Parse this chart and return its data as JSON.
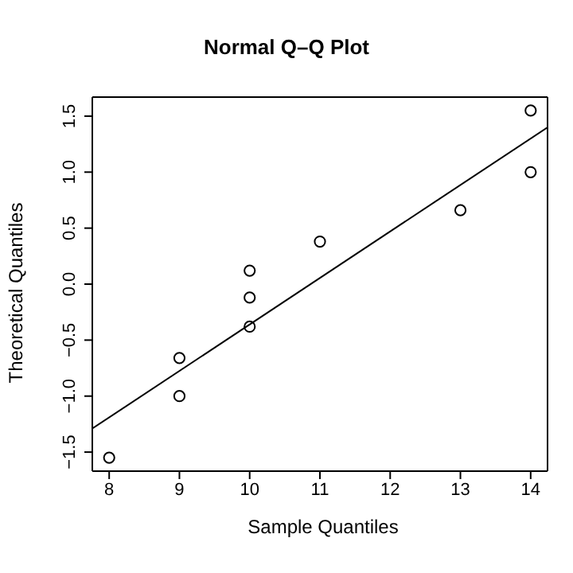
{
  "chart_data": {
    "type": "scatter",
    "title": "Normal Q–Q Plot",
    "xlabel": "Sample Quantiles",
    "ylabel": "Theoretical Quantiles",
    "series": [
      {
        "color": "#000000",
        "marker": "circle",
        "x": [
          8,
          9,
          9,
          10,
          10,
          10,
          11,
          13,
          14,
          14
        ],
        "values": [
          -1.55,
          -1.0,
          -0.66,
          -0.38,
          -0.12,
          0.12,
          0.38,
          0.66,
          1.0,
          1.55
        ]
      },
      {
        "type": "line",
        "color": "#000000",
        "marker": "none",
        "line_style": "solid",
        "x": [
          7.76,
          14.24
        ],
        "values": [
          -1.29,
          1.4
        ]
      }
    ],
    "xlim": [
      7.76,
      14.24
    ],
    "xticks": [
      8,
      9,
      10,
      11,
      12,
      13,
      14
    ],
    "ylim": [
      -1.67,
      1.67
    ],
    "yticks": [
      {
        "value": -1.5,
        "label": "−1.5"
      },
      {
        "value": -1.0,
        "label": "−1.0"
      },
      {
        "value": -0.5,
        "label": "−0.5"
      },
      {
        "value": 0,
        "label": "0.0"
      },
      {
        "value": 0.5,
        "label": "0.5"
      },
      {
        "value": 1.0,
        "label": "1.0"
      },
      {
        "value": 1.5,
        "label": "1.5"
      }
    ],
    "legend": false
  }
}
